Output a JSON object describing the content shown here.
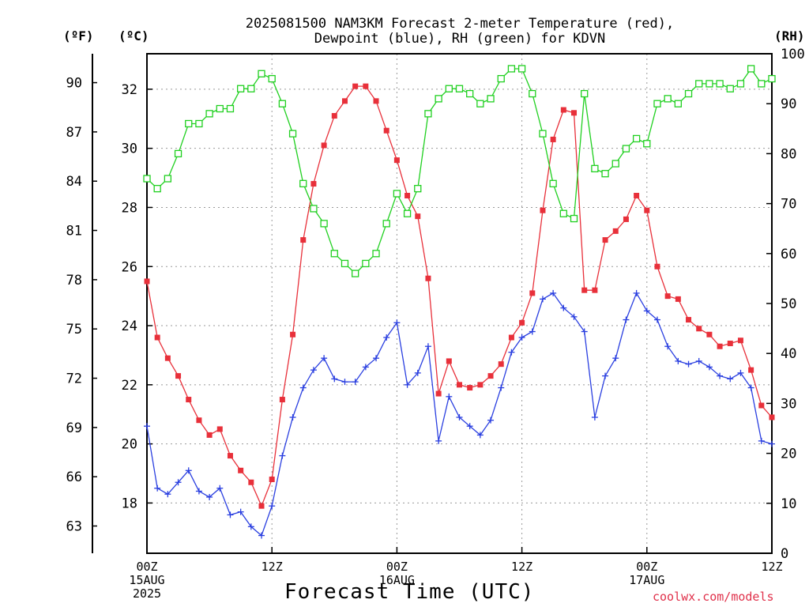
{
  "title_line1": "2025081500 NAM3KM Forecast 2-meter Temperature (red),",
  "title_line2": "Dewpoint (blue), RH (green) for KDVN",
  "unit_f": "(ºF)",
  "unit_c": "(ºC)",
  "unit_rh": "(RH)",
  "xlabel": "Forecast Time (UTC)",
  "credit": "coolwx.com/models",
  "colors": {
    "temperature": "#e8303a",
    "dewpoint": "#2a3fe0",
    "rh": "#20d020",
    "grid": "#999999"
  },
  "chart_data": {
    "type": "line",
    "title": "2025081500 NAM3KM Forecast 2-meter Temperature (red), Dewpoint (blue), RH (green) for KDVN",
    "xlabel": "Forecast Time (UTC)",
    "x_unit": "forecast hours from 2025-08-15 00Z",
    "xlim": [
      0,
      60
    ],
    "x_ticks": [
      {
        "x": 0,
        "lines": [
          "00Z",
          "15AUG",
          "2025"
        ]
      },
      {
        "x": 12,
        "lines": [
          "12Z"
        ]
      },
      {
        "x": 24,
        "lines": [
          "00Z",
          "16AUG"
        ]
      },
      {
        "x": 36,
        "lines": [
          "12Z"
        ]
      },
      {
        "x": 48,
        "lines": [
          "00Z",
          "17AUG"
        ]
      },
      {
        "x": 60,
        "lines": [
          "12Z"
        ]
      }
    ],
    "ylim_c": [
      16.3,
      33.2
    ],
    "y_ticks_c": [
      18,
      20,
      22,
      24,
      26,
      28,
      30,
      32
    ],
    "y_ticks_f": [
      63,
      66,
      69,
      72,
      75,
      78,
      81,
      84,
      87,
      90
    ],
    "ylim_rh": [
      0,
      100
    ],
    "y_ticks_rh": [
      0,
      10,
      20,
      30,
      40,
      50,
      60,
      70,
      80,
      90,
      100
    ],
    "grid": true,
    "x": [
      0,
      1,
      2,
      3,
      4,
      5,
      6,
      7,
      8,
      9,
      10,
      11,
      12,
      13,
      14,
      15,
      16,
      17,
      18,
      19,
      20,
      21,
      22,
      23,
      24,
      25,
      26,
      27,
      28,
      29,
      30,
      31,
      32,
      33,
      34,
      35,
      36,
      37,
      38,
      39,
      40,
      41,
      42,
      43,
      44,
      45,
      46,
      47,
      48,
      49,
      50,
      51,
      52,
      53,
      54,
      55,
      56,
      57,
      58,
      59,
      60
    ],
    "series": [
      {
        "name": "Temperature",
        "axis": "C",
        "color": "#e8303a",
        "marker": "filled-square",
        "values": [
          25.5,
          23.6,
          22.9,
          22.3,
          21.5,
          20.8,
          20.3,
          20.5,
          19.6,
          19.1,
          18.7,
          17.9,
          18.8,
          21.5,
          23.7,
          26.9,
          28.8,
          30.1,
          31.1,
          31.6,
          32.1,
          32.1,
          31.6,
          30.6,
          29.6,
          28.4,
          27.7,
          25.6,
          21.7,
          22.8,
          22.0,
          21.9,
          22.0,
          22.3,
          22.7,
          23.6,
          24.1,
          25.1,
          27.9,
          30.3,
          31.3,
          31.2,
          25.2,
          25.2,
          26.9,
          27.2,
          27.6,
          28.4,
          27.9,
          26.0,
          25.0,
          24.9,
          24.2,
          23.9,
          23.7,
          23.3,
          23.4,
          23.5,
          22.5,
          21.3,
          20.9
        ]
      },
      {
        "name": "Dewpoint",
        "axis": "C",
        "color": "#2a3fe0",
        "marker": "plus",
        "values": [
          20.6,
          18.5,
          18.3,
          18.7,
          19.1,
          18.4,
          18.2,
          18.5,
          17.6,
          17.7,
          17.2,
          16.9,
          17.9,
          19.6,
          20.9,
          21.9,
          22.5,
          22.9,
          22.2,
          22.1,
          22.1,
          22.6,
          22.9,
          23.6,
          24.1,
          22.0,
          22.4,
          23.3,
          20.1,
          21.6,
          20.9,
          20.6,
          20.3,
          20.8,
          21.9,
          23.1,
          23.6,
          23.8,
          24.9,
          25.1,
          24.6,
          24.3,
          23.8,
          20.9,
          22.3,
          22.9,
          24.2,
          25.1,
          24.5,
          24.2,
          23.3,
          22.8,
          22.7,
          22.8,
          22.6,
          22.3,
          22.2,
          22.4,
          21.9,
          20.1,
          20.0
        ]
      },
      {
        "name": "RH",
        "axis": "RH",
        "color": "#20d020",
        "marker": "open-square",
        "values": [
          75,
          73,
          75,
          80,
          86,
          86,
          88,
          89,
          89,
          93,
          93,
          96,
          95,
          90,
          84,
          74,
          69,
          66,
          60,
          58,
          56,
          58,
          60,
          66,
          72,
          68,
          73,
          88,
          91,
          93,
          93,
          92,
          90,
          91,
          95,
          97,
          97,
          92,
          84,
          74,
          68,
          67,
          92,
          77,
          76,
          78,
          81,
          83,
          82,
          90,
          91,
          90,
          92,
          94,
          94,
          94,
          93,
          94,
          97,
          94,
          95
        ]
      }
    ]
  }
}
